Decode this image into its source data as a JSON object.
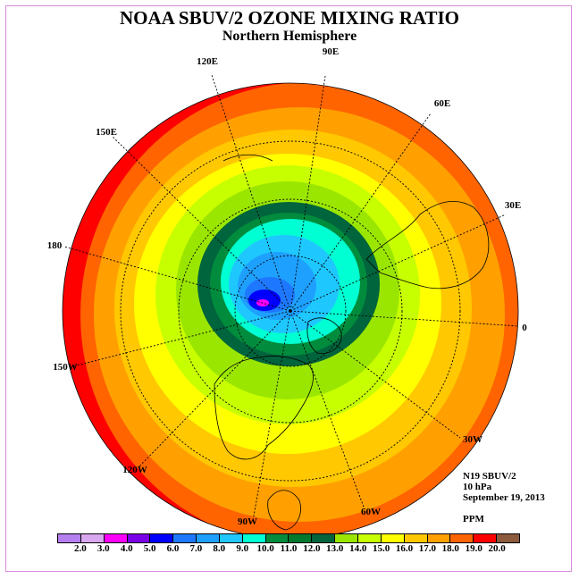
{
  "title": "NOAA SBUV/2 OZONE MIXING RATIO",
  "subtitle": "Northern Hemisphere",
  "longitude_labels": [
    "90E",
    "60E",
    "30E",
    "0",
    "30W",
    "60W",
    "90W",
    "120W",
    "150W",
    "180",
    "150E",
    "120E"
  ],
  "info": {
    "satellite": "N19 SBUV/2",
    "level": "10 hPa",
    "date": "September 19, 2013",
    "units": "PPM"
  },
  "colorbar": {
    "ticks": [
      "2.0",
      "3.0",
      "4.0",
      "5.0",
      "6.0",
      "7.0",
      "8.0",
      "9.0",
      "10.0",
      "11.0",
      "12.0",
      "13.0",
      "14.0",
      "15.0",
      "16.0",
      "17.0",
      "18.0",
      "19.0",
      "20.0"
    ],
    "colors": [
      "#b57ff0",
      "#d9a6f0",
      "#ff00ff",
      "#7a00e6",
      "#0000ff",
      "#1e78ff",
      "#1ea0ff",
      "#1ec8ff",
      "#00ffd2",
      "#008c3c",
      "#00782d",
      "#00643c",
      "#9be600",
      "#c8ff00",
      "#ffff00",
      "#ffc800",
      "#ffa000",
      "#ff6400",
      "#ff0000",
      "#8c5a3c"
    ]
  }
}
